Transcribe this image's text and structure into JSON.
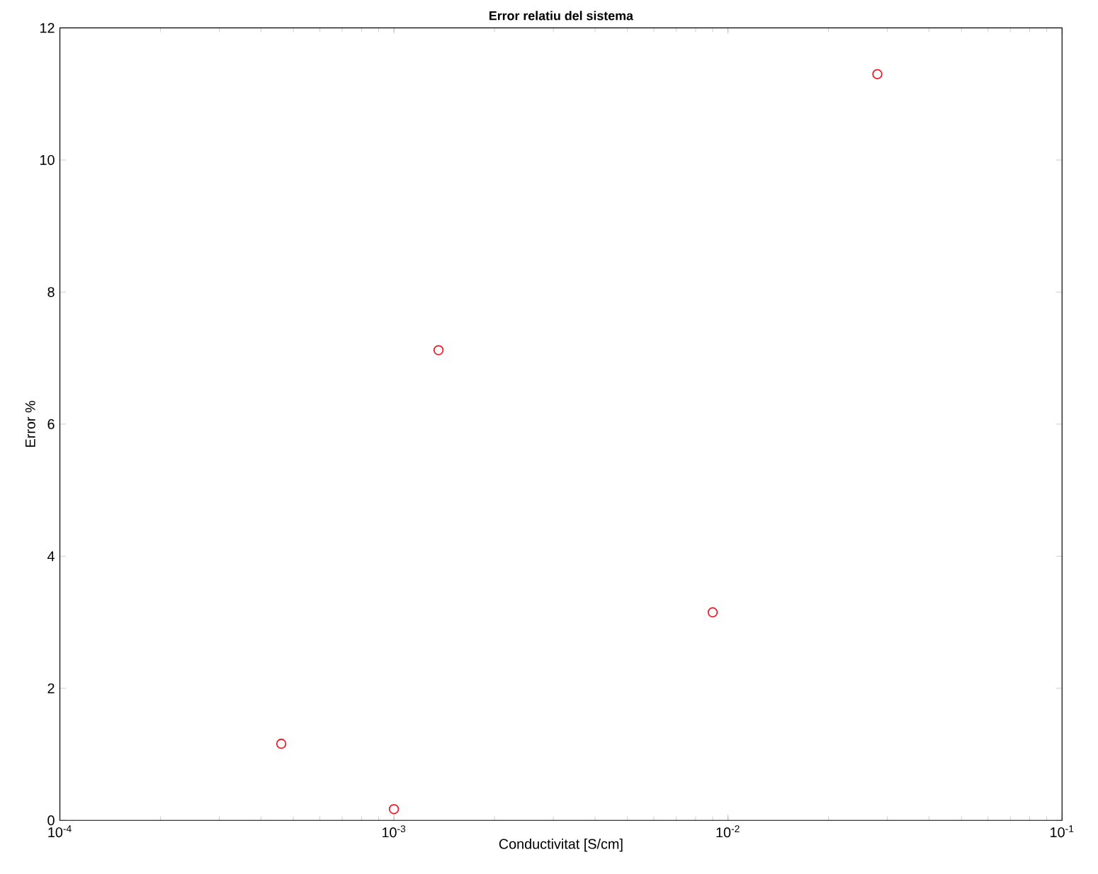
{
  "chart_data": {
    "type": "scatter",
    "title": "Error relatiu del sistema",
    "xlabel": "Conductivitat [S/cm]",
    "ylabel": "Error %",
    "log": "x",
    "marker": "circle",
    "x": [
      0.00046,
      0.001,
      0.00136,
      0.009,
      0.028
    ],
    "series": [
      {
        "color": "#e8202a",
        "values": [
          1.16,
          0.17,
          7.12,
          3.15,
          11.3
        ]
      }
    ],
    "xlim": [
      0.0001,
      0.1
    ],
    "xticks": [
      {
        "value": 0.0001,
        "label": "10$^{-4}$"
      },
      {
        "value": 0.001,
        "label": "10$^{-3}$"
      },
      {
        "value": 0.01,
        "label": "10$^{-2}$"
      },
      {
        "value": 0.1,
        "label": "10$^{-1}$"
      }
    ],
    "ylim": [
      0,
      12
    ],
    "yticks": [
      0,
      2,
      4,
      6,
      8,
      10,
      12
    ]
  }
}
